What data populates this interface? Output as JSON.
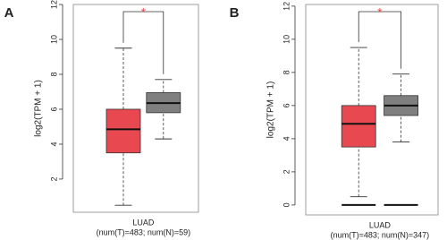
{
  "chart_data": [
    {
      "type": "box",
      "panel": "A",
      "ylabel": "log2(TPM + 1)",
      "xlabel": "LUAD",
      "xlabel_detail": "(num(T)=483; num(N)=59)",
      "ylim": [
        0.1,
        12
      ],
      "yticks": [
        2,
        4,
        6,
        8,
        10,
        12
      ],
      "annotation": "*",
      "boxes": [
        {
          "color": "#e8484f",
          "whisker_low": 0.5,
          "q1": 3.5,
          "median": 4.85,
          "q3": 6.0,
          "whisker_high": 9.5
        },
        {
          "color": "#7f7f7f",
          "whisker_low": 4.3,
          "q1": 5.8,
          "median": 6.35,
          "q3": 6.95,
          "whisker_high": 7.7
        }
      ]
    },
    {
      "type": "box",
      "panel": "B",
      "ylabel": "log2(TPM + 1)",
      "xlabel": "LUAD",
      "xlabel_detail": "(num(T)=483; num(N)=347)",
      "ylim": [
        -0.6,
        12.1
      ],
      "yticks": [
        0,
        2,
        4,
        6,
        8,
        10,
        12
      ],
      "annotation": "*",
      "boxes": [
        {
          "color": "#e8484f",
          "whisker_low": 0.5,
          "q1": 3.5,
          "median": 4.9,
          "q3": 6.0,
          "whisker_high": 9.5
        },
        {
          "color": "#7f7f7f",
          "whisker_low": 3.8,
          "q1": 5.4,
          "median": 6.0,
          "q3": 6.6,
          "whisker_high": 7.9
        }
      ]
    }
  ]
}
